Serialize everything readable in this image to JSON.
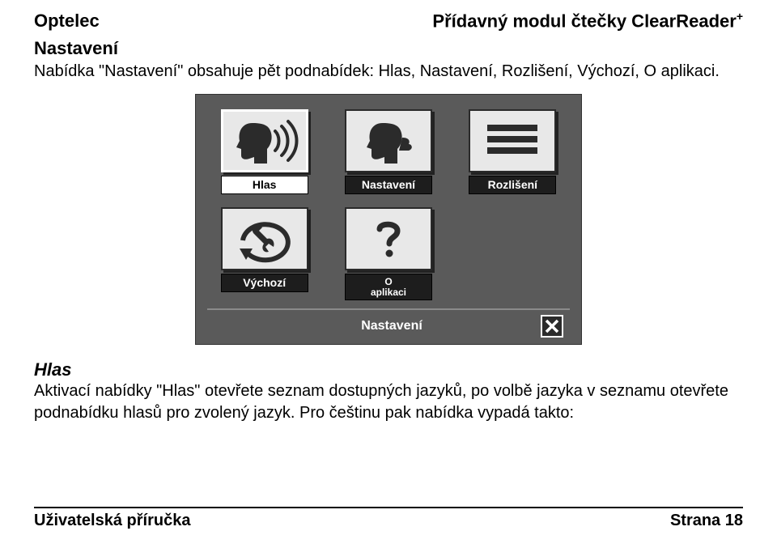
{
  "header": {
    "left": "Optelec",
    "right": "Přídavný modul čtečky ClearReader",
    "right_sup": "+"
  },
  "section": {
    "heading": "Nastavení",
    "intro": "Nabídka \"Nastavení\" obsahuje pět podnabídek: Hlas, Nastavení, Rozlišení, Výchozí, O aplikaci."
  },
  "screenshot": {
    "background_color": "#5a5a5a",
    "tile_bg": "#e8e8e8",
    "tile_border": "#2a2a2a",
    "label_bg": "#1d1d1d",
    "label_fg": "#ffffff",
    "selected_border": "#ffffff",
    "tiles": [
      {
        "id": "hlas",
        "label": "Hlas",
        "icon": "head-sound",
        "selected": true
      },
      {
        "id": "nastaveni",
        "label": "Nastavení",
        "icon": "head-speak",
        "selected": false
      },
      {
        "id": "rozliseni",
        "label": "Rozlišení",
        "icon": "lines",
        "selected": false
      },
      {
        "id": "vychozi",
        "label": "Výchozí",
        "icon": "wrench-cycle",
        "selected": false
      },
      {
        "id": "oaplikaci",
        "label": "O\naplikaci",
        "icon": "question",
        "selected": false
      }
    ],
    "bar_label": "Nastavení",
    "close_icon": "close"
  },
  "hlas": {
    "heading": "Hlas",
    "text": "Aktivací nabídky \"Hlas\" otevřete seznam dostupných jazyků, po volbě jazyka v seznamu otevřete podnabídku hlasů pro zvolený jazyk. Pro češtinu pak nabídka vypadá takto:"
  },
  "footer": {
    "left": "Uživatelská příručka",
    "right": "Strana 18"
  }
}
